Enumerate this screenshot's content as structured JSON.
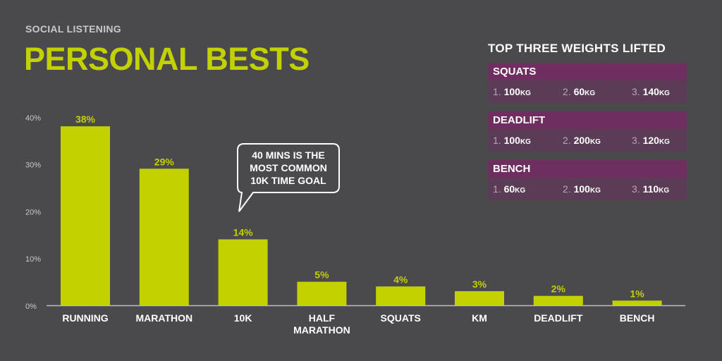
{
  "header": {
    "kicker": "SOCIAL LISTENING",
    "title": "PERSONAL BESTS"
  },
  "chart_data": {
    "type": "bar",
    "categories": [
      "RUNNING",
      "MARATHON",
      "10K",
      "HALF MARATHON",
      "SQUATS",
      "KM",
      "DEADLIFT",
      "BENCH"
    ],
    "category_lines": [
      [
        "RUNNING"
      ],
      [
        "MARATHON"
      ],
      [
        "10K"
      ],
      [
        "HALF",
        "MARATHON"
      ],
      [
        "SQUATS"
      ],
      [
        "KM"
      ],
      [
        "DEADLIFT"
      ],
      [
        "BENCH"
      ]
    ],
    "values": [
      38,
      29,
      14,
      5,
      4,
      3,
      2,
      1
    ],
    "value_labels": [
      "38%",
      "29%",
      "14%",
      "5%",
      "4%",
      "3%",
      "2%",
      "1%"
    ],
    "yticks": [
      0,
      10,
      20,
      30,
      40
    ],
    "ytick_labels": [
      "0%",
      "10%",
      "20%",
      "30%",
      "40%"
    ],
    "ylim": [
      0,
      45
    ],
    "grid": false,
    "bar_color": "#c3d100",
    "annotation": {
      "category_index": 2,
      "lines": [
        "40 MINS IS THE",
        "MOST COMMON",
        "10K TIME GOAL"
      ]
    }
  },
  "weights": {
    "title": "TOP THREE WEIGHTS LIFTED",
    "unit": "KG",
    "lifts": [
      {
        "name": "SQUATS",
        "entries": [
          {
            "rank": "1.",
            "value": "100"
          },
          {
            "rank": "2.",
            "value": "60"
          },
          {
            "rank": "3.",
            "value": "140"
          }
        ]
      },
      {
        "name": "DEADLIFT",
        "entries": [
          {
            "rank": "1.",
            "value": "100"
          },
          {
            "rank": "2.",
            "value": "200"
          },
          {
            "rank": "3.",
            "value": "120"
          }
        ]
      },
      {
        "name": "BENCH",
        "entries": [
          {
            "rank": "1.",
            "value": "60"
          },
          {
            "rank": "2.",
            "value": "100"
          },
          {
            "rank": "3.",
            "value": "110"
          }
        ]
      }
    ]
  },
  "colors": {
    "background": "#4a494c",
    "accent": "#c3d100",
    "lift_header": "#6e2f60",
    "lift_row": "#5b3c57"
  }
}
